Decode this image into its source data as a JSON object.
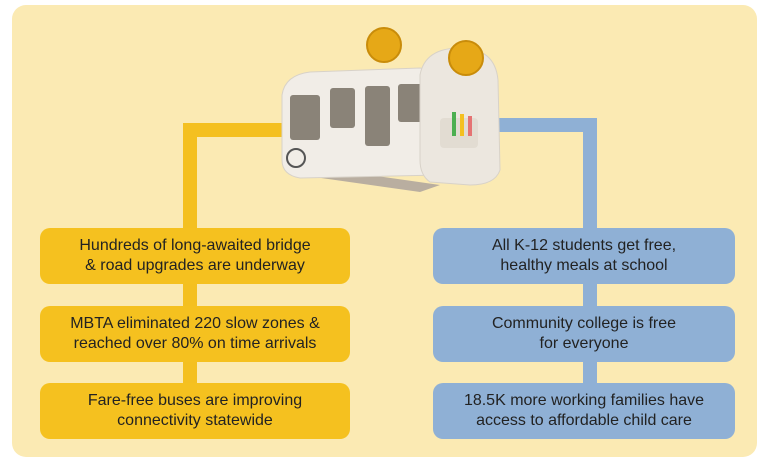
{
  "left_items": [
    {
      "lines": [
        "Hundreds of long-awaited bridge",
        "& road upgrades are underway"
      ]
    },
    {
      "lines": [
        "MBTA eliminated 220 slow zones &",
        "reached over 80% on time arrivals"
      ]
    },
    {
      "lines": [
        "Fare-free buses are improving",
        "connectivity statewide"
      ]
    }
  ],
  "right_items": [
    {
      "lines": [
        "All K-12 students get free,",
        "healthy meals at school"
      ]
    },
    {
      "lines": [
        "Community college is free",
        "for everyone"
      ]
    },
    {
      "lines": [
        "18.5K more working families have",
        "access to affordable child care"
      ]
    }
  ]
}
